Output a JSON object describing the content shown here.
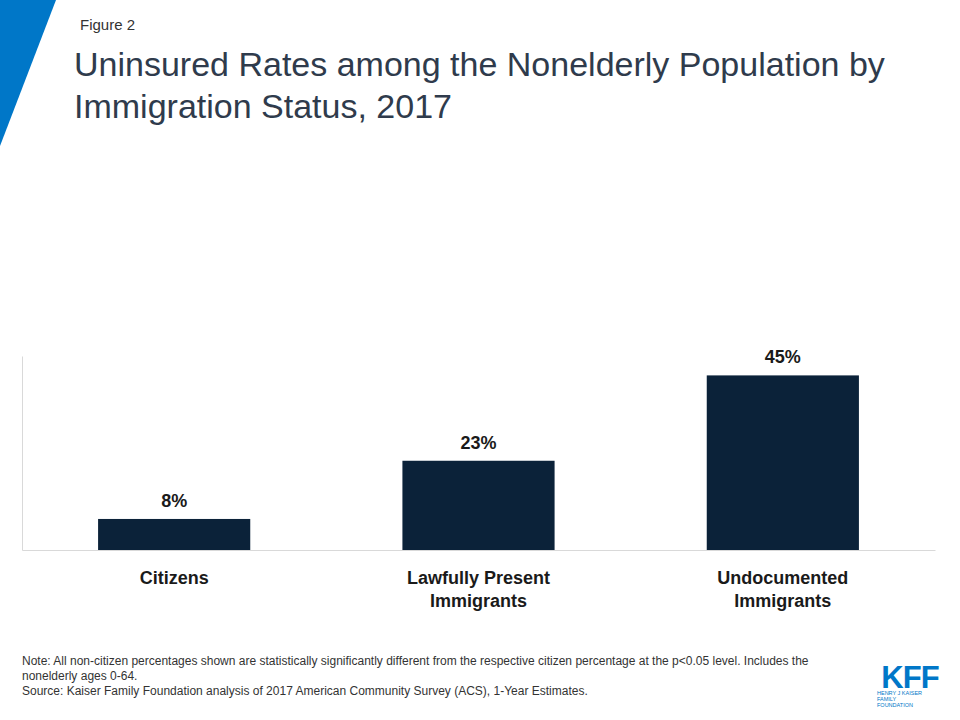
{
  "chart_data": {
    "type": "bar",
    "figure_label": "Figure 2",
    "title": "Uninsured Rates among the Nonelderly Population by Immigration Status, 2017",
    "categories": [
      "Citizens",
      "Lawfully Present Immigrants",
      "Undocumented Immigrants"
    ],
    "values": [
      8,
      23,
      45
    ],
    "value_labels": [
      "8%",
      "23%",
      "45%"
    ],
    "data_labels": true,
    "color": "#0b2239",
    "ylim": [
      0,
      50
    ],
    "yticks": [],
    "tick_labels": "x",
    "grid": false,
    "note": "Note: All non-citizen percentages shown are statistically significantly different from the respective citizen percentage at the p<0.05 level. Includes the nonelderly ages 0-64.",
    "source": "Source: Kaiser Family Foundation analysis of 2017 American Community Survey (ACS), 1-Year Estimates.",
    "logo_text": "KFF",
    "logo_subtext": "HENRY J KAISER FAMILY FOUNDATION"
  }
}
